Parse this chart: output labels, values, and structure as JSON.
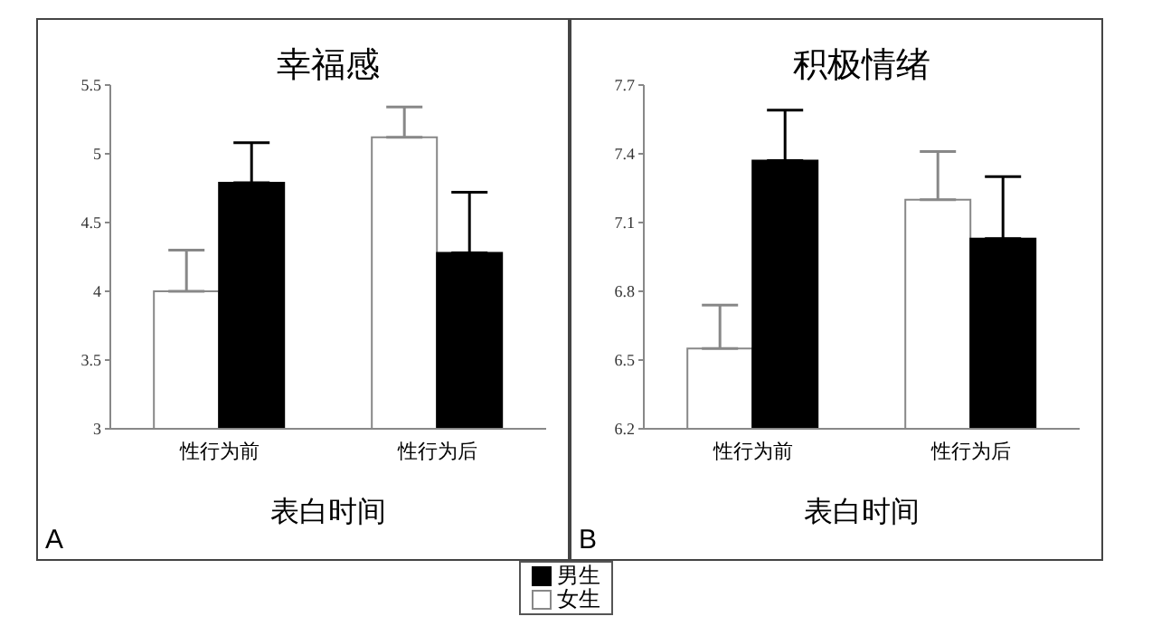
{
  "chart_data": [
    {
      "type": "bar",
      "title": "幸福感",
      "xlabel": "表白时间",
      "categories": [
        "性行为前",
        "性行为后"
      ],
      "series": [
        {
          "name": "女生",
          "color": "#ffffff",
          "values": [
            4.0,
            5.12
          ],
          "errors": [
            [
              4.0,
              4.3
            ],
            [
              5.12,
              5.34
            ]
          ]
        },
        {
          "name": "男生",
          "color": "#000000",
          "values": [
            4.79,
            4.28
          ],
          "errors": [
            [
              4.79,
              5.08
            ],
            [
              4.28,
              4.72
            ]
          ]
        }
      ],
      "ylim": [
        3,
        5.5
      ],
      "yticks": [
        3,
        3.5,
        4,
        4.5,
        5,
        5.5
      ],
      "annotations": [
        "A"
      ],
      "legend": "bottom right"
    },
    {
      "type": "bar",
      "title": "积极情绪",
      "xlabel": "表白时间",
      "categories": [
        "性行为前",
        "性行为后"
      ],
      "series": [
        {
          "name": "女生",
          "color": "#ffffff",
          "values": [
            6.55,
            7.2
          ],
          "errors": [
            [
              6.55,
              6.74
            ],
            [
              7.2,
              7.41
            ]
          ]
        },
        {
          "name": "男生",
          "color": "#000000",
          "values": [
            7.37,
            7.03
          ],
          "errors": [
            [
              7.37,
              7.59
            ],
            [
              7.03,
              7.3
            ]
          ]
        }
      ],
      "ylim": [
        6.2,
        7.7
      ],
      "yticks": [
        6.2,
        6.5,
        6.8,
        7.1,
        7.4,
        7.7
      ],
      "annotations": [
        "B"
      ],
      "legend": "bottom left"
    }
  ]
}
